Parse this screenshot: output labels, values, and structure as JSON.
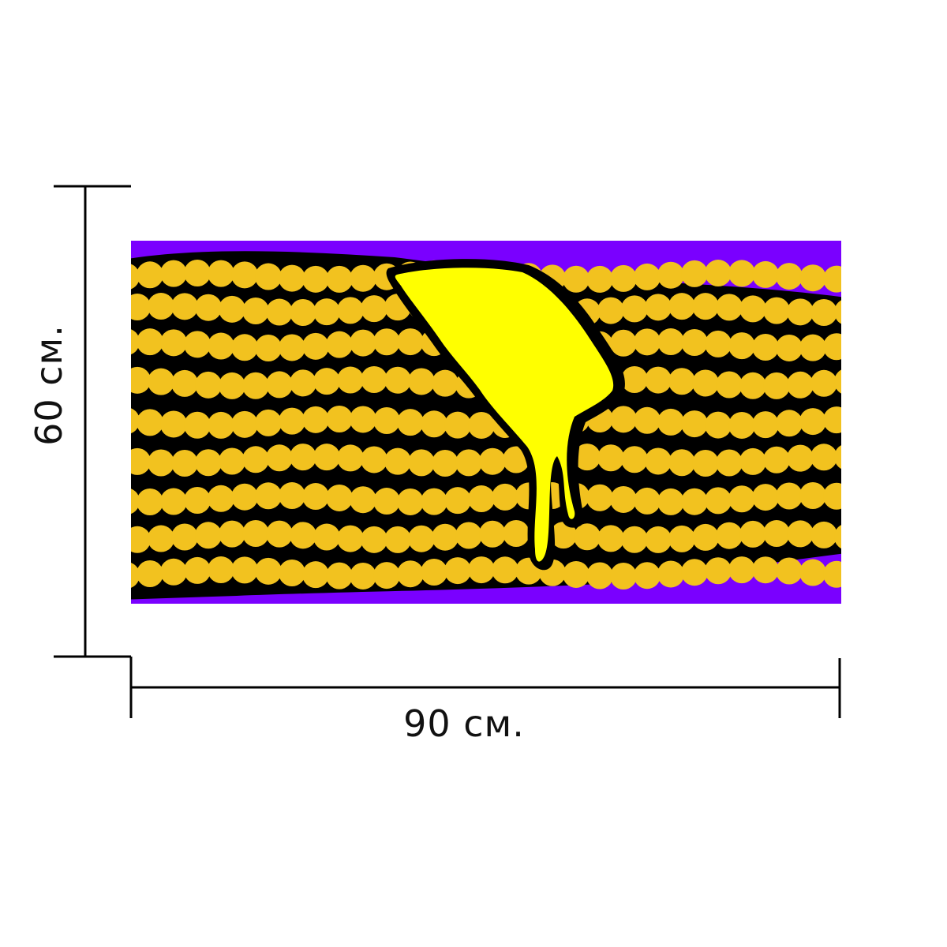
{
  "dimensions": {
    "width_label": "90 см.",
    "height_label": "60 см."
  },
  "artwork": {
    "subject": "corn-cob-with-melting-butter",
    "colors": {
      "background": "#7a00ff",
      "kernel": "#f2c21f",
      "outline": "#000000",
      "butter": "#ffff00"
    }
  }
}
